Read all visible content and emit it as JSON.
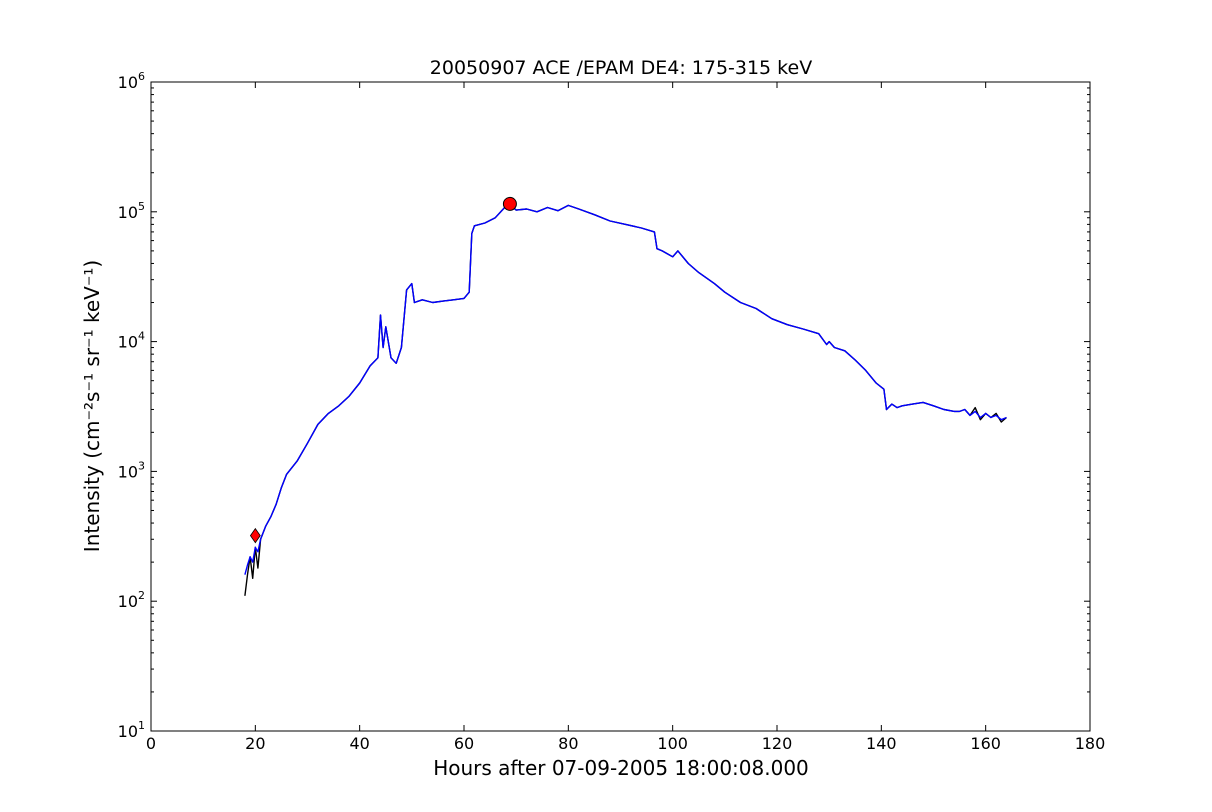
{
  "chart_data": {
    "type": "line",
    "title": "20050907 ACE /EPAM DE4: 175-315 keV",
    "xlabel": "Hours after 07-09-2005 18:00:08.000",
    "ylabel": "Intensity (cm⁻²s⁻¹ sr⁻¹ keV⁻¹)",
    "xlim": [
      0,
      180
    ],
    "ylim": [
      10,
      1000000
    ],
    "yscale": "log",
    "x_ticks": [
      0,
      20,
      40,
      60,
      80,
      100,
      120,
      140,
      160,
      180
    ],
    "y_ticks": [
      {
        "value": 10,
        "base": "10",
        "exp": "1"
      },
      {
        "value": 100,
        "base": "10",
        "exp": "2"
      },
      {
        "value": 1000,
        "base": "10",
        "exp": "3"
      },
      {
        "value": 10000,
        "base": "10",
        "exp": "4"
      },
      {
        "value": 100000,
        "base": "10",
        "exp": "5"
      },
      {
        "value": 1000000,
        "base": "10",
        "exp": "6"
      }
    ],
    "grid": false,
    "series": [
      {
        "color": "#000000",
        "x": [
          18,
          18.5,
          19,
          19.5,
          20,
          20.5,
          21,
          22,
          23,
          24,
          25,
          26,
          28,
          30,
          32,
          34,
          36,
          38,
          40,
          42,
          43.5,
          44,
          44.5,
          45,
          46,
          47,
          48,
          49,
          50,
          50.5,
          52,
          54,
          56,
          58,
          60,
          61,
          61.5,
          62,
          64,
          66,
          68,
          69,
          70,
          72,
          74,
          76,
          78,
          80,
          82,
          85,
          88,
          91,
          94,
          96.5,
          97,
          98,
          100,
          101,
          103,
          105,
          108,
          110,
          113,
          116,
          119,
          122,
          125,
          128,
          129.5,
          130,
          131,
          133,
          135,
          137,
          139,
          140.5,
          141,
          142,
          143,
          144,
          146,
          148,
          150,
          152,
          154,
          155,
          156,
          157,
          158,
          159,
          160,
          161,
          162,
          163,
          164
        ],
        "y": [
          110,
          160,
          220,
          150,
          260,
          180,
          300,
          380,
          450,
          560,
          750,
          950,
          1200,
          1650,
          2300,
          2800,
          3200,
          3800,
          4800,
          6500,
          7500,
          16000,
          9000,
          13000,
          7500,
          6800,
          9000,
          25000,
          28000,
          20000,
          21000,
          20000,
          20500,
          21000,
          21500,
          24000,
          68000,
          78000,
          82000,
          90000,
          110000,
          112000,
          103000,
          105000,
          100000,
          108000,
          102000,
          112000,
          105000,
          95000,
          85000,
          80000,
          75000,
          70000,
          52000,
          50000,
          45000,
          50000,
          40000,
          34000,
          28000,
          24000,
          20000,
          18000,
          15000,
          13500,
          12500,
          11500,
          9500,
          10000,
          9000,
          8500,
          7200,
          6000,
          4800,
          4300,
          3000,
          3300,
          3100,
          3200,
          3300,
          3400,
          3200,
          3000,
          2900,
          2900,
          3000,
          2700,
          3100,
          2500,
          2800,
          2600,
          2800,
          2400,
          2600
        ]
      },
      {
        "color": "#0000ff",
        "x": [
          18,
          18.5,
          19,
          19.5,
          20,
          20.5,
          21,
          22,
          23,
          24,
          25,
          26,
          28,
          30,
          32,
          34,
          36,
          38,
          40,
          42,
          43.5,
          44,
          44.5,
          45,
          46,
          47,
          48,
          49,
          50,
          50.5,
          52,
          54,
          56,
          58,
          60,
          61,
          61.5,
          62,
          64,
          66,
          68,
          69,
          70,
          72,
          74,
          76,
          78,
          80,
          82,
          85,
          88,
          91,
          94,
          96.5,
          97,
          98,
          100,
          101,
          103,
          105,
          108,
          110,
          113,
          116,
          119,
          122,
          125,
          128,
          129.5,
          130,
          131,
          133,
          135,
          137,
          139,
          140.5,
          141,
          142,
          143,
          144,
          146,
          148,
          150,
          152,
          154,
          155,
          156,
          157,
          158,
          159,
          160,
          161,
          162,
          163,
          164
        ],
        "y": [
          160,
          190,
          220,
          200,
          260,
          240,
          300,
          380,
          450,
          560,
          750,
          950,
          1200,
          1650,
          2300,
          2800,
          3200,
          3800,
          4800,
          6500,
          7500,
          16000,
          9000,
          13000,
          7500,
          6800,
          9000,
          25000,
          28000,
          20000,
          21000,
          20000,
          20500,
          21000,
          21500,
          24000,
          68000,
          78000,
          82000,
          90000,
          110000,
          112000,
          103000,
          105000,
          100000,
          108000,
          102000,
          112000,
          105000,
          95000,
          85000,
          80000,
          75000,
          70000,
          52000,
          50000,
          45000,
          50000,
          40000,
          34000,
          28000,
          24000,
          20000,
          18000,
          15000,
          13500,
          12500,
          11500,
          9500,
          10000,
          9000,
          8500,
          7200,
          6000,
          4800,
          4300,
          3000,
          3300,
          3100,
          3200,
          3300,
          3400,
          3200,
          3000,
          2900,
          2900,
          3000,
          2700,
          2900,
          2600,
          2800,
          2600,
          2700,
          2500,
          2600
        ]
      }
    ],
    "markers": [
      {
        "shape": "diamond",
        "color": "#ff0000",
        "x": 20,
        "y": 320
      },
      {
        "shape": "circle",
        "color": "#ff0000",
        "x": 68.8,
        "y": 115000
      }
    ]
  }
}
